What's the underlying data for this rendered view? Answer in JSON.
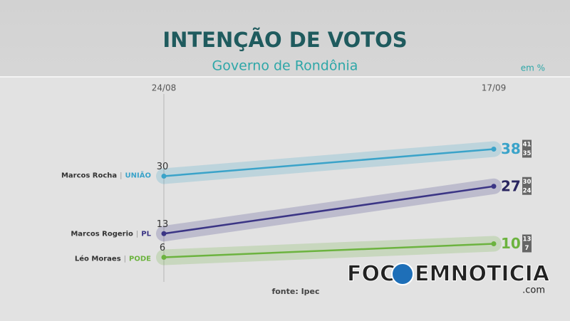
{
  "chart_data": {
    "type": "line",
    "title": "INTENÇÃO DE VOTOS",
    "subtitle": "Governo de Rondônia",
    "unit_note": "em %",
    "source": "fonte: Ipec",
    "categories": [
      "24/08",
      "17/09"
    ],
    "ylim": [
      0,
      58
    ],
    "series": [
      {
        "name": "Marcos Rocha",
        "party": "UNIÃO",
        "color": "#3aa3c9",
        "values": [
          30,
          38
        ],
        "final_range": [
          41,
          35
        ]
      },
      {
        "name": "Marcos Rogerio",
        "party": "PL",
        "color": "#3b3585",
        "values": [
          13,
          27
        ],
        "final_range": [
          30,
          24
        ]
      },
      {
        "name": "Léo Moraes",
        "party": "PODE",
        "color": "#6cb33f",
        "values": [
          6,
          10
        ],
        "final_range": [
          13,
          7
        ]
      }
    ],
    "watermark": [
      "FOC",
      "EMNOTICIA"
    ],
    "watermark_suffix": ".com"
  }
}
